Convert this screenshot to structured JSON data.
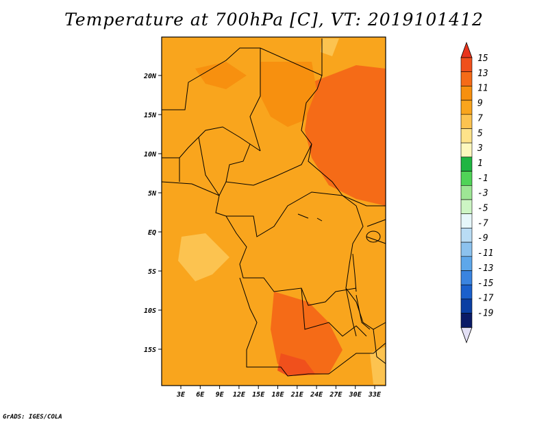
{
  "title": "Temperature at 700hPa [C], VT: 2019101412",
  "footer": "GrADS: IGES/COLA",
  "map": {
    "lon_range": [
      0,
      35
    ],
    "lat_range": [
      -20,
      24
    ],
    "lat_ticks": [
      "20N",
      "15N",
      "10N",
      "5N",
      "EQ",
      "5S",
      "10S",
      "15S"
    ],
    "lon_ticks": [
      "3E",
      "6E",
      "9E",
      "12E",
      "15E",
      "18E",
      "21E",
      "24E",
      "27E",
      "30E",
      "33E"
    ],
    "region": "Central Africa"
  },
  "colorbar": {
    "labels": [
      "15",
      "13",
      "11",
      "9",
      "7",
      "5",
      "3",
      "1",
      "-1",
      "-3",
      "-5",
      "-7",
      "-9",
      "-11",
      "-13",
      "-15",
      "-17",
      "-19"
    ],
    "colors": [
      "#e8341d",
      "#f0501c",
      "#f56b17",
      "#f7900f",
      "#f9a51d",
      "#fcc350",
      "#fee38a",
      "#fdf8be",
      "#1fb542",
      "#50d357",
      "#9ee695",
      "#cdf5c4",
      "#e6f7fa",
      "#b9dcf4",
      "#8cc2ee",
      "#5ea7ea",
      "#3a84e0",
      "#1a60cc",
      "#0b3fa3",
      "#0a1a66",
      "#e3e0f5"
    ]
  }
}
